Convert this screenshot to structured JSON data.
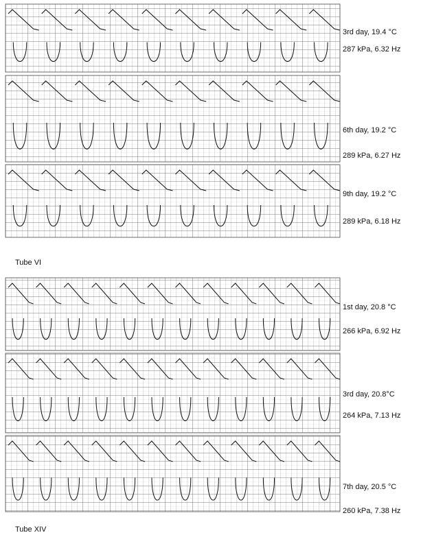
{
  "groups": [
    {
      "label": "Tube VI",
      "panels": [
        {
          "lines": [
            "3rd day, 19.4 °C",
            "287 kPa, 6.32 Hz"
          ]
        },
        {
          "lines": [
            "6th day, 19.2 °C",
            "289 kPa, 6.27 Hz"
          ]
        },
        {
          "lines": [
            "9th day, 19.2 °C",
            "289 kPa, 6.18 Hz"
          ]
        }
      ]
    },
    {
      "label": "Tube XIV",
      "panels": [
        {
          "lines": [
            "1st day, 20.8 °C",
            "266 kPa, 6.92 Hz"
          ]
        },
        {
          "lines": [
            "3rd day, 20.8°C",
            "264 kPa, 7.13 Hz"
          ]
        },
        {
          "lines": [
            "7th day, 20.5 °C",
            "260 kPa, 7.38 Hz"
          ]
        }
      ]
    }
  ]
}
